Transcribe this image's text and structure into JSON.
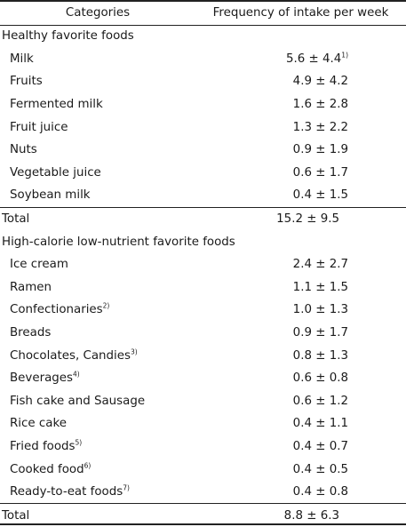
{
  "header": {
    "col1": "Categories",
    "col2": "Frequency of intake per week"
  },
  "healthy": {
    "title": "Healthy favorite foods",
    "items": [
      {
        "name": "Milk",
        "sup": "",
        "value": "5.6 ± 4.4",
        "note": "1)"
      },
      {
        "name": "Fruits",
        "sup": "",
        "value": "4.9 ± 4.2",
        "note": ""
      },
      {
        "name": "Fermented milk",
        "sup": "",
        "value": "1.6 ± 2.8",
        "note": ""
      },
      {
        "name": "Fruit juice",
        "sup": "",
        "value": "1.3 ± 2.2",
        "note": ""
      },
      {
        "name": "Nuts",
        "sup": "",
        "value": "0.9 ± 1.9",
        "note": ""
      },
      {
        "name": "Vegetable juice",
        "sup": "",
        "value": "0.6 ± 1.7",
        "note": ""
      },
      {
        "name": "Soybean milk",
        "sup": "",
        "value": "0.4 ± 1.5",
        "note": ""
      }
    ],
    "total_label": "Total",
    "total_value": "15.2 ± 9.5"
  },
  "high_calorie": {
    "title": "High-calorie low-nutrient favorite foods",
    "items": [
      {
        "name": "Ice cream",
        "sup": "",
        "value": "2.4 ± 2.7",
        "note": ""
      },
      {
        "name": "Ramen",
        "sup": "",
        "value": "1.1 ± 1.5",
        "note": ""
      },
      {
        "name": "Confectionaries",
        "sup": "2)",
        "value": "1.0 ± 1.3",
        "note": ""
      },
      {
        "name": "Breads",
        "sup": "",
        "value": "0.9 ± 1.7",
        "note": ""
      },
      {
        "name": "Chocolates, Candies",
        "sup": "3)",
        "value": "0.8 ± 1.3",
        "note": ""
      },
      {
        "name": "Beverages",
        "sup": "4)",
        "value": "0.6 ± 0.8",
        "note": ""
      },
      {
        "name": "Fish cake and Sausage",
        "sup": "",
        "value": "0.6 ± 1.2",
        "note": ""
      },
      {
        "name": "Rice cake",
        "sup": "",
        "value": "0.4 ± 1.1",
        "note": ""
      },
      {
        "name": "Fried foods",
        "sup": "5)",
        "value": "0.4 ± 0.7",
        "note": ""
      },
      {
        "name": "Cooked food",
        "sup": "6)",
        "value": "0.4 ± 0.5",
        "note": ""
      },
      {
        "name": "Ready-to-eat foods",
        "sup": "7)",
        "value": "0.4 ± 0.8",
        "note": ""
      }
    ],
    "total_label": "Total",
    "total_value": "8.8 ± 6.3"
  }
}
